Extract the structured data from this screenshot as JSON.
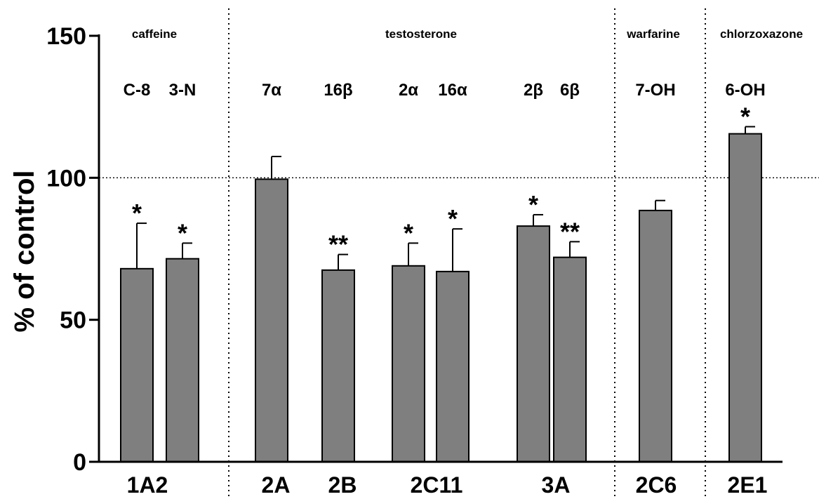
{
  "chart_data": {
    "type": "bar",
    "title": "",
    "xlabel": "",
    "ylabel": "% of control",
    "ylim": [
      0,
      150
    ],
    "yticks": [
      "0",
      "50",
      "100",
      "150"
    ],
    "reference_line": 100,
    "grid": false,
    "colors": {
      "bar": "#7f7f7f",
      "line": "#000000"
    },
    "sections": [
      {
        "label": "caffeine"
      },
      {
        "label": "testosterone"
      },
      {
        "label": "warfarine"
      },
      {
        "label": "chlorzoxazone"
      }
    ],
    "groups": [
      {
        "label": "1A2"
      },
      {
        "label": "2A"
      },
      {
        "label": "2B"
      },
      {
        "label": "2C11"
      },
      {
        "label": "3A"
      },
      {
        "label": "2C6"
      },
      {
        "label": "2E1"
      }
    ],
    "bars": [
      {
        "site": "C-8",
        "group": "1A2",
        "value": 68,
        "error": 16,
        "sig": "*"
      },
      {
        "site": "3-N",
        "group": "1A2",
        "value": 71.5,
        "error": 5.5,
        "sig": "*"
      },
      {
        "site": "7α",
        "group": "2A",
        "value": 99.5,
        "error": 8,
        "sig": ""
      },
      {
        "site": "16β",
        "group": "2B",
        "value": 67.5,
        "error": 5.5,
        "sig": "**"
      },
      {
        "site": "2α",
        "group": "2C11",
        "value": 69,
        "error": 8,
        "sig": "*"
      },
      {
        "site": "16α",
        "group": "2C11",
        "value": 67,
        "error": 15,
        "sig": "*"
      },
      {
        "site": "2β",
        "group": "3A",
        "value": 83,
        "error": 4,
        "sig": "*"
      },
      {
        "site": "6β",
        "group": "3A",
        "value": 72,
        "error": 5.5,
        "sig": "**"
      },
      {
        "site": "7-OH",
        "group": "2C6",
        "value": 88.5,
        "error": 3.5,
        "sig": ""
      },
      {
        "site": "6-OH",
        "group": "2E1",
        "value": 115.5,
        "error": 2.5,
        "sig": "*"
      }
    ]
  }
}
